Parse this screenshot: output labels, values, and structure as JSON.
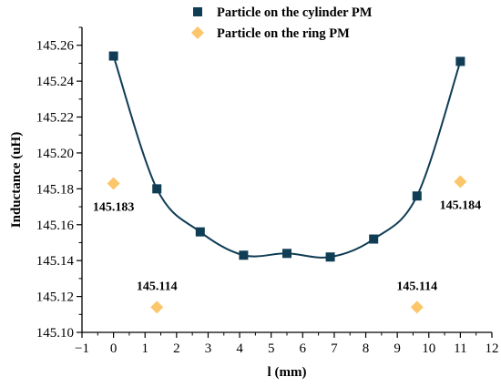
{
  "chart_data": {
    "type": "scatter",
    "title": "",
    "xlabel": "l (mm)",
    "ylabel": "Inductance (uH)",
    "xlim": [
      -1,
      12
    ],
    "ylim": [
      145.1,
      145.27
    ],
    "x_ticks": [
      "−1",
      "0",
      "1",
      "2",
      "3",
      "4",
      "5",
      "6",
      "7",
      "8",
      "9",
      "10",
      "11",
      "12"
    ],
    "x_tick_values": [
      -1,
      0,
      1,
      2,
      3,
      4,
      5,
      6,
      7,
      8,
      9,
      10,
      11,
      12
    ],
    "y_ticks": [
      "145.10",
      "145.12",
      "145.14",
      "145.16",
      "145.18",
      "145.20",
      "145.22",
      "145.24",
      "145.26"
    ],
    "y_tick_values": [
      145.1,
      145.12,
      145.14,
      145.16,
      145.18,
      145.2,
      145.22,
      145.24,
      145.26
    ],
    "grid": false,
    "legend_position": "top-center",
    "series": [
      {
        "name": "Particle on the cylinder PM",
        "marker": "square",
        "color": "#0f3d55",
        "x": [
          0,
          1.375,
          2.75,
          4.125,
          5.5,
          6.875,
          8.25,
          9.625,
          11
        ],
        "y": [
          145.254,
          145.18,
          145.156,
          145.143,
          145.144,
          145.142,
          145.152,
          145.176,
          145.251
        ],
        "fit_curve": true,
        "fit_color": "#0f3d55"
      },
      {
        "name": "Particle on the ring PM",
        "marker": "diamond",
        "color": "#fcc66a",
        "x": [
          0,
          1.375,
          9.625,
          11
        ],
        "y": [
          145.183,
          145.114,
          145.114,
          145.184
        ]
      }
    ],
    "annotations": [
      {
        "text": "145.183",
        "x": 0,
        "y": 145.183,
        "anchor": "below"
      },
      {
        "text": "145.114",
        "x": 1.375,
        "y": 145.114,
        "anchor": "above"
      },
      {
        "text": "145.114",
        "x": 9.625,
        "y": 145.114,
        "anchor": "above"
      },
      {
        "text": "145.184",
        "x": 11,
        "y": 145.184,
        "anchor": "below"
      }
    ]
  }
}
